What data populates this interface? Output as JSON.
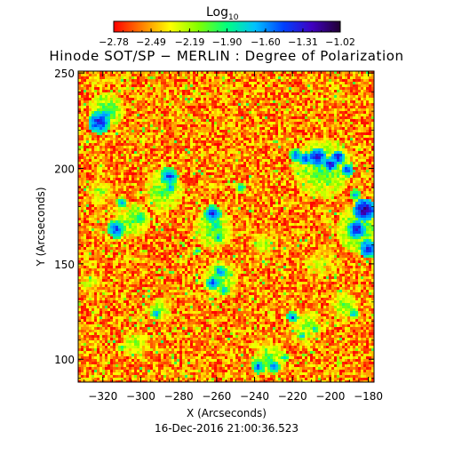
{
  "chart_data": {
    "type": "heatmap",
    "title": "Hinode SOT/SP − MERLIN : Degree of Polarization",
    "xlabel": "X (Arcseconds)",
    "ylabel": "Y (Arcseconds)",
    "xlim": [
      -333,
      -177
    ],
    "ylim": [
      88,
      251
    ],
    "x_ticks": [
      -320,
      -300,
      -280,
      -260,
      -240,
      -220,
      -200,
      -180
    ],
    "y_ticks": [
      100,
      150,
      200,
      250
    ],
    "timestamp": "16-Dec-2016 21:00:36.523",
    "colorbar": {
      "title": "Log",
      "title_sub": "10",
      "ticks": [
        -2.78,
        -2.49,
        -2.19,
        -1.9,
        -1.6,
        -1.31,
        -1.02
      ],
      "tick_labels": [
        "−2.78",
        "−2.49",
        "−2.19",
        "−1.90",
        "−1.60",
        "−1.31",
        "−1.02"
      ],
      "range": [
        -2.78,
        -1.02
      ]
    },
    "colormap": [
      "#ff0000",
      "#ff8000",
      "#ffff00",
      "#80ff00",
      "#00ff80",
      "#00c0ff",
      "#0040ff",
      "#4000c0",
      "#200030"
    ],
    "background_level": -2.62,
    "strong_polarization_patches": [
      {
        "x": -322,
        "y": 224,
        "radius": 5,
        "level": -1.25
      },
      {
        "x": -319,
        "y": 228,
        "radius": 3,
        "level": -1.4
      },
      {
        "x": -285,
        "y": 196,
        "radius": 4,
        "level": -1.35
      },
      {
        "x": -284,
        "y": 190,
        "radius": 2.5,
        "level": -1.5
      },
      {
        "x": -310,
        "y": 182,
        "radius": 2.5,
        "level": -1.55
      },
      {
        "x": -300,
        "y": 174,
        "radius": 3,
        "level": -1.6
      },
      {
        "x": -313,
        "y": 168,
        "radius": 4,
        "level": -1.35
      },
      {
        "x": -262,
        "y": 176,
        "radius": 4,
        "level": -1.35
      },
      {
        "x": -260,
        "y": 170,
        "radius": 3,
        "level": -1.6
      },
      {
        "x": -259,
        "y": 164,
        "radius": 3,
        "level": -1.65
      },
      {
        "x": -270,
        "y": 157,
        "radius": 2,
        "level": -1.7
      },
      {
        "x": -247,
        "y": 190,
        "radius": 2.5,
        "level": -1.6
      },
      {
        "x": -218,
        "y": 207,
        "radius": 3,
        "level": -1.4
      },
      {
        "x": -213,
        "y": 205,
        "radius": 3,
        "level": -1.3
      },
      {
        "x": -207,
        "y": 206,
        "radius": 4,
        "level": -1.2
      },
      {
        "x": -200,
        "y": 202,
        "radius": 3,
        "level": -1.15
      },
      {
        "x": -196,
        "y": 206,
        "radius": 3,
        "level": -1.2
      },
      {
        "x": -191,
        "y": 199,
        "radius": 3,
        "level": -1.35
      },
      {
        "x": -182,
        "y": 178,
        "radius": 5,
        "level": -1.1
      },
      {
        "x": -186,
        "y": 168,
        "radius": 4,
        "level": -1.2
      },
      {
        "x": -180,
        "y": 158,
        "radius": 4,
        "level": -1.25
      },
      {
        "x": -187,
        "y": 186,
        "radius": 2.5,
        "level": -1.5
      },
      {
        "x": -262,
        "y": 140,
        "radius": 3,
        "level": -1.35
      },
      {
        "x": -258,
        "y": 146,
        "radius": 3,
        "level": -1.45
      },
      {
        "x": -256,
        "y": 136,
        "radius": 2.5,
        "level": -1.6
      },
      {
        "x": -292,
        "y": 124,
        "radius": 2.5,
        "level": -1.55
      },
      {
        "x": -238,
        "y": 96,
        "radius": 3,
        "level": -1.4
      },
      {
        "x": -230,
        "y": 96,
        "radius": 3,
        "level": -1.45
      },
      {
        "x": -224,
        "y": 101,
        "radius": 2,
        "level": -1.6
      },
      {
        "x": -220,
        "y": 122,
        "radius": 2.5,
        "level": -1.4
      },
      {
        "x": -215,
        "y": 112,
        "radius": 2,
        "level": -1.6
      },
      {
        "x": -208,
        "y": 116,
        "radius": 2,
        "level": -1.65
      },
      {
        "x": -188,
        "y": 124,
        "radius": 2.5,
        "level": -1.6
      },
      {
        "x": -310,
        "y": 106,
        "radius": 2,
        "level": -1.8
      }
    ],
    "moderate_polarization_patches": [
      {
        "x": -318,
        "y": 230,
        "radius": 10,
        "level": -1.95
      },
      {
        "x": -288,
        "y": 188,
        "radius": 11,
        "level": -2.0
      },
      {
        "x": -305,
        "y": 173,
        "radius": 10,
        "level": -2.0
      },
      {
        "x": -262,
        "y": 168,
        "radius": 11,
        "level": -2.0
      },
      {
        "x": -204,
        "y": 200,
        "radius": 16,
        "level": -1.95
      },
      {
        "x": -184,
        "y": 168,
        "radius": 13,
        "level": -1.9
      },
      {
        "x": -258,
        "y": 142,
        "radius": 10,
        "level": -2.0
      },
      {
        "x": -290,
        "y": 126,
        "radius": 7,
        "level": -2.05
      },
      {
        "x": -232,
        "y": 100,
        "radius": 9,
        "level": -2.0
      },
      {
        "x": -213,
        "y": 117,
        "radius": 9,
        "level": -2.05
      },
      {
        "x": -193,
        "y": 128,
        "radius": 8,
        "level": -2.05
      },
      {
        "x": -303,
        "y": 108,
        "radius": 8,
        "level": -2.1
      },
      {
        "x": -322,
        "y": 188,
        "radius": 7,
        "level": -2.1
      },
      {
        "x": -327,
        "y": 140,
        "radius": 6,
        "level": -2.15
      },
      {
        "x": -235,
        "y": 160,
        "radius": 7,
        "level": -2.15
      },
      {
        "x": -205,
        "y": 150,
        "radius": 7,
        "level": -2.15
      }
    ]
  }
}
